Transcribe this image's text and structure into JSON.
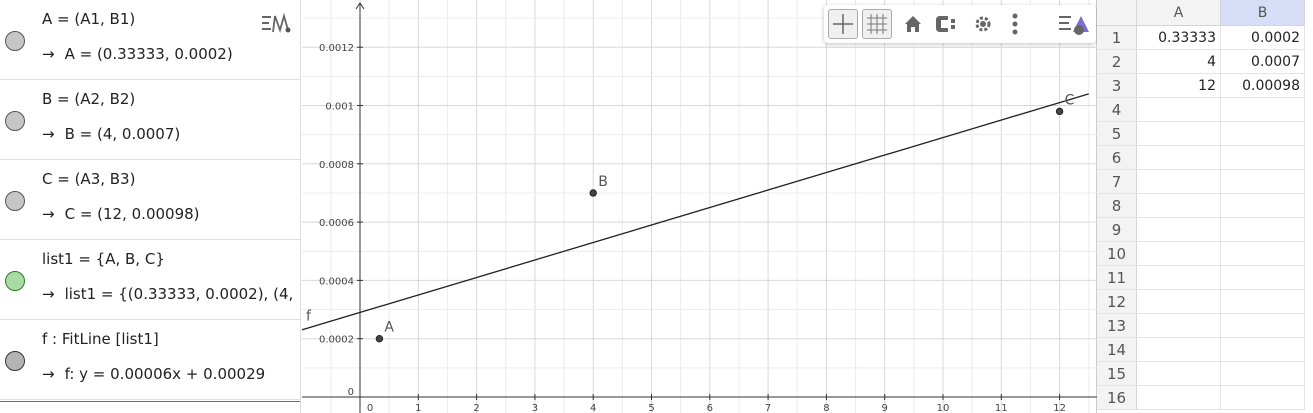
{
  "algebra": {
    "items": [
      {
        "definition": "A = (A1, B1)",
        "value": "A = (0.33333, 0.0002)",
        "color": "#c6c6c6"
      },
      {
        "definition": "B = (A2, B2)",
        "value": "B = (4, 0.0007)",
        "color": "#c6c6c6"
      },
      {
        "definition": "C = (A3, B3)",
        "value": "C = (12, 0.00098)",
        "color": "#c6c6c6"
      },
      {
        "definition": "list1 = {A, B, C}",
        "value": "list1 = {(0.33333, 0.0002), (4,",
        "color": "#a9dba4"
      },
      {
        "definition": "f : FitLine [list1]",
        "value": "f: y = 0.00006x + 0.00029",
        "color": "#b4b4b4"
      }
    ],
    "arrow": "→",
    "menu_icon": "algebra-style-icon"
  },
  "graphics": {
    "toolbar": {
      "icons": [
        "axes-icon",
        "grid-icon",
        "home-icon",
        "style-bar-icon",
        "settings-icon",
        "more-icon",
        "graphics-menu-icon"
      ]
    },
    "y_tick_labels": [
      "0",
      "0.0002",
      "0.0004",
      "0.0006",
      "0.0008",
      "0.001",
      "0.0012"
    ],
    "x_tick_labels": [
      "0",
      "1",
      "2",
      "3",
      "4",
      "5",
      "6",
      "7",
      "8",
      "9",
      "10",
      "11",
      "12"
    ],
    "points": [
      {
        "label": "A",
        "x": 0.33333,
        "y": 0.0002
      },
      {
        "label": "B",
        "x": 4,
        "y": 0.0007
      },
      {
        "label": "C",
        "x": 12,
        "y": 0.00098
      }
    ],
    "line": {
      "label": "f",
      "slope": 6e-05,
      "intercept": 0.00029
    },
    "axis_ranges": {
      "x": [
        -0.9,
        12.5
      ],
      "y": [
        -6e-05,
        0.00136
      ]
    }
  },
  "spreadsheet": {
    "columns": [
      "A",
      "B"
    ],
    "selected_column": "B",
    "rows": [
      "1",
      "2",
      "3",
      "4",
      "5",
      "6",
      "7",
      "8",
      "9",
      "10",
      "11",
      "12",
      "13",
      "14",
      "15",
      "16"
    ],
    "cells": [
      [
        "0.33333",
        "0.0002"
      ],
      [
        "4",
        "0.0007"
      ],
      [
        "12",
        "0.00098"
      ]
    ]
  }
}
